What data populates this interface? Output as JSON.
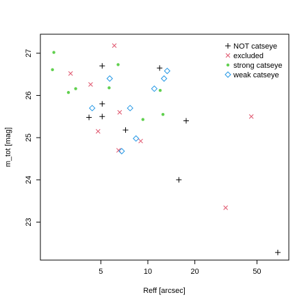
{
  "chart_data": {
    "type": "scatter",
    "xlabel": "Reff [arcsec]",
    "ylabel": "m_tot [mag]",
    "xscale": "log",
    "xlim": [
      2.05,
      80
    ],
    "ylim": [
      22.1,
      27.45
    ],
    "xticks": [
      5,
      10,
      20,
      50
    ],
    "yticks": [
      23,
      24,
      25,
      26,
      27
    ],
    "grid": false,
    "legend_position": "top-right",
    "series": [
      {
        "name": "NOT catseye",
        "marker": "plus",
        "color": "#000000",
        "points": [
          [
            5.1,
            26.7
          ],
          [
            11.9,
            26.65
          ],
          [
            5.1,
            25.8
          ],
          [
            4.2,
            25.48
          ],
          [
            5.1,
            25.5
          ],
          [
            7.2,
            25.18
          ],
          [
            17.6,
            25.4
          ],
          [
            15.8,
            24.0
          ],
          [
            68,
            22.28
          ]
        ]
      },
      {
        "name": "excluded",
        "marker": "cross",
        "color": "#DF536B",
        "points": [
          [
            6.1,
            27.18
          ],
          [
            3.2,
            26.52
          ],
          [
            4.3,
            26.26
          ],
          [
            4.8,
            25.15
          ],
          [
            6.6,
            25.6
          ],
          [
            6.5,
            24.7
          ],
          [
            9.0,
            24.92
          ],
          [
            31.5,
            23.34
          ],
          [
            46,
            25.5
          ]
        ]
      },
      {
        "name": "strong catseye",
        "marker": "dot",
        "color": "#61D04F",
        "points": [
          [
            2.5,
            27.02
          ],
          [
            2.45,
            26.61
          ],
          [
            3.1,
            26.07
          ],
          [
            3.45,
            26.16
          ],
          [
            5.65,
            26.18
          ],
          [
            6.45,
            26.73
          ],
          [
            12.0,
            26.12
          ],
          [
            9.3,
            25.43
          ],
          [
            12.5,
            25.55
          ]
        ]
      },
      {
        "name": "weak catseye",
        "marker": "diamond",
        "color": "#2297E6",
        "points": [
          [
            5.7,
            26.4
          ],
          [
            4.4,
            25.7
          ],
          [
            7.7,
            25.7
          ],
          [
            8.4,
            24.98
          ],
          [
            6.8,
            24.68
          ],
          [
            11.0,
            26.16
          ],
          [
            12.7,
            26.4
          ],
          [
            13.3,
            26.58
          ]
        ]
      }
    ]
  }
}
